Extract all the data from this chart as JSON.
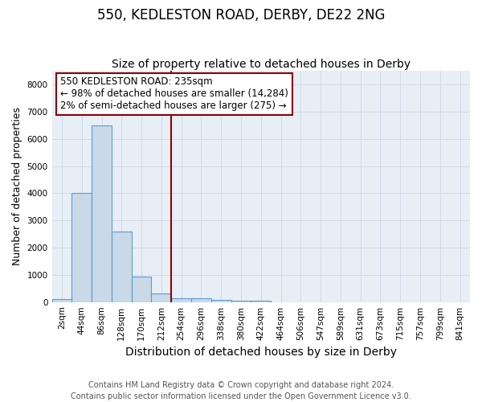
{
  "title": "550, KEDLESTON ROAD, DERBY, DE22 2NG",
  "subtitle": "Size of property relative to detached houses in Derby",
  "xlabel": "Distribution of detached houses by size in Derby",
  "ylabel": "Number of detached properties",
  "footer_line1": "Contains HM Land Registry data © Crown copyright and database right 2024.",
  "footer_line2": "Contains public sector information licensed under the Open Government Licence v3.0.",
  "bin_labels": [
    "2sqm",
    "44sqm",
    "86sqm",
    "128sqm",
    "170sqm",
    "212sqm",
    "254sqm",
    "296sqm",
    "338sqm",
    "380sqm",
    "422sqm",
    "464sqm",
    "506sqm",
    "547sqm",
    "589sqm",
    "631sqm",
    "673sqm",
    "715sqm",
    "757sqm",
    "799sqm",
    "841sqm"
  ],
  "bar_values": [
    100,
    4000,
    6500,
    2600,
    950,
    325,
    150,
    125,
    75,
    50,
    50,
    0,
    0,
    0,
    0,
    0,
    0,
    0,
    0,
    0,
    0
  ],
  "bar_color": "#c9d9e8",
  "bar_edgecolor": "#5b9bd5",
  "bar_linewidth": 0.8,
  "vline_x": 5.5,
  "vline_color": "#8b0000",
  "annotation_title": "550 KEDLESTON ROAD: 235sqm",
  "annotation_line1": "← 98% of detached houses are smaller (14,284)",
  "annotation_line2": "2% of semi-detached houses are larger (275) →",
  "annotation_box_color": "#8b0000",
  "ylim_max": 8500,
  "yticks": [
    0,
    1000,
    2000,
    3000,
    4000,
    5000,
    6000,
    7000,
    8000
  ],
  "grid_color": "#cdd7e8",
  "background_color": "#e8eef5",
  "title_fontsize": 12,
  "subtitle_fontsize": 10,
  "xlabel_fontsize": 10,
  "ylabel_fontsize": 9,
  "tick_fontsize": 7.5,
  "annotation_fontsize": 8.5,
  "footer_fontsize": 7
}
